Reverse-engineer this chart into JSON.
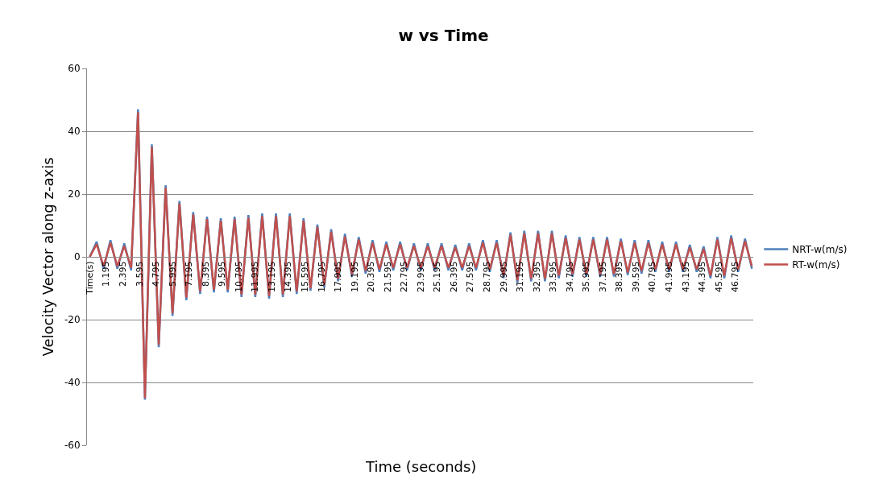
{
  "chart_data": {
    "type": "line",
    "title": "w vs Time",
    "xlabel": "Time (seconds)",
    "ylabel": "Velocity Vector along z-axis",
    "x": [
      0,
      0.5,
      1,
      1.5,
      2,
      2.5,
      3,
      3.5,
      4,
      4.5,
      5,
      5.5,
      6,
      6.5,
      7,
      7.5,
      8,
      8.5,
      9,
      9.5,
      10,
      10.5,
      11,
      11.5,
      12,
      12.5,
      13,
      13.5,
      14,
      14.5,
      15,
      15.5,
      16,
      16.5,
      17,
      17.5,
      18,
      18.5,
      19,
      19.5,
      20,
      20.5,
      21,
      21.5,
      22,
      22.5,
      23,
      23.5,
      24,
      24.5,
      25,
      25.5,
      26,
      26.5,
      27,
      27.5,
      28,
      28.5,
      29,
      29.5,
      30,
      30.5,
      31,
      31.5,
      32,
      32.5,
      33,
      33.5,
      34,
      34.5,
      35,
      35.5,
      36,
      36.5,
      37,
      37.5,
      38,
      38.5,
      39,
      39.5,
      40,
      40.5,
      41,
      41.5,
      42,
      42.5,
      43,
      43.5,
      44,
      44.5,
      45,
      45.5,
      46,
      46.5,
      47,
      47.5,
      48
    ],
    "series": [
      {
        "name": "NRT-w(m/s)",
        "color": "#4f81bd",
        "values": [
          0,
          4.8,
          -3.8,
          5.3,
          -3.8,
          4.3,
          -4.3,
          47,
          -45.5,
          35.8,
          -28.8,
          22.8,
          -18.8,
          17.8,
          -13.8,
          14.3,
          -11.8,
          12.8,
          -11.3,
          12.3,
          -11.3,
          12.8,
          -12.8,
          13.3,
          -12.8,
          13.8,
          -13.3,
          13.8,
          -12.8,
          13.8,
          -11.8,
          12.3,
          -10.8,
          10.3,
          -9.8,
          8.8,
          -7.8,
          7.3,
          -6.3,
          6.3,
          -5.3,
          5.3,
          -4.8,
          4.8,
          -4.3,
          4.8,
          -4.3,
          4.3,
          -4.3,
          4.3,
          -4.3,
          4.3,
          -4.3,
          3.8,
          -4.3,
          4.3,
          -4.3,
          5.3,
          -4.8,
          5.3,
          -6.8,
          7.8,
          -8.3,
          8.3,
          -7.8,
          8.3,
          -7.8,
          8.3,
          -6.8,
          6.8,
          -6.3,
          6.3,
          -6.3,
          6.3,
          -6.3,
          6.3,
          -6.3,
          5.8,
          -5.8,
          5.3,
          -5.3,
          5.3,
          -4.8,
          4.8,
          -4.8,
          4.8,
          -4.8,
          3.8,
          -4.8,
          3.3,
          -6.8,
          6.3,
          -6.8,
          6.8,
          -4.8,
          5.8,
          -3.8
        ]
      },
      {
        "name": "RT-w(m/s)",
        "color": "#c0504d",
        "values": [
          0,
          4,
          -3,
          4.5,
          -3,
          3.5,
          -3.5,
          46,
          -45,
          35,
          -28,
          22,
          -18,
          17,
          -13,
          13.5,
          -11,
          12,
          -10.5,
          11.5,
          -10.5,
          12,
          -12,
          12.5,
          -12,
          13,
          -12.5,
          13,
          -12,
          13,
          -11,
          11.5,
          -10,
          9.5,
          -9,
          8,
          -7,
          6.5,
          -5.5,
          5.5,
          -4.5,
          4.5,
          -4,
          4,
          -3.5,
          4,
          -3.5,
          3.5,
          -3.5,
          3.5,
          -3.5,
          3.5,
          -3.5,
          3,
          -3.5,
          3.5,
          -3.5,
          4.5,
          -4,
          4.5,
          -6,
          7,
          -7.5,
          7.5,
          -7,
          7.5,
          -7,
          7.5,
          -6,
          6,
          -5.5,
          5.5,
          -5.5,
          5.5,
          -5.5,
          5.5,
          -5.5,
          5,
          -5,
          4.5,
          -4.5,
          4.5,
          -4,
          4,
          -4,
          4,
          -4,
          3,
          -4,
          2.5,
          -6,
          5.5,
          -6,
          6,
          -4,
          5,
          -3
        ]
      }
    ],
    "xlim": [
      -0.2,
      48.1
    ],
    "xticks": [
      {
        "value": 0,
        "label": "Time(s)"
      },
      1.195,
      2.395,
      3.595,
      4.795,
      5.995,
      7.195,
      8.395,
      9.595,
      10.795,
      11.995,
      13.195,
      14.395,
      15.595,
      16.795,
      17.995,
      19.195,
      20.395,
      21.595,
      22.795,
      23.995,
      25.195,
      26.395,
      27.595,
      28.795,
      29.995,
      31.195,
      32.395,
      33.595,
      34.795,
      35.995,
      37.195,
      38.395,
      39.595,
      40.795,
      41.995,
      43.195,
      44.395,
      45.595,
      46.795
    ],
    "ylim": [
      -60,
      60
    ],
    "yticks": [
      -60,
      -40,
      -20,
      0,
      20,
      40,
      60
    ],
    "grid": "y",
    "legend": "right",
    "marker": "none",
    "line_style": "solid"
  }
}
